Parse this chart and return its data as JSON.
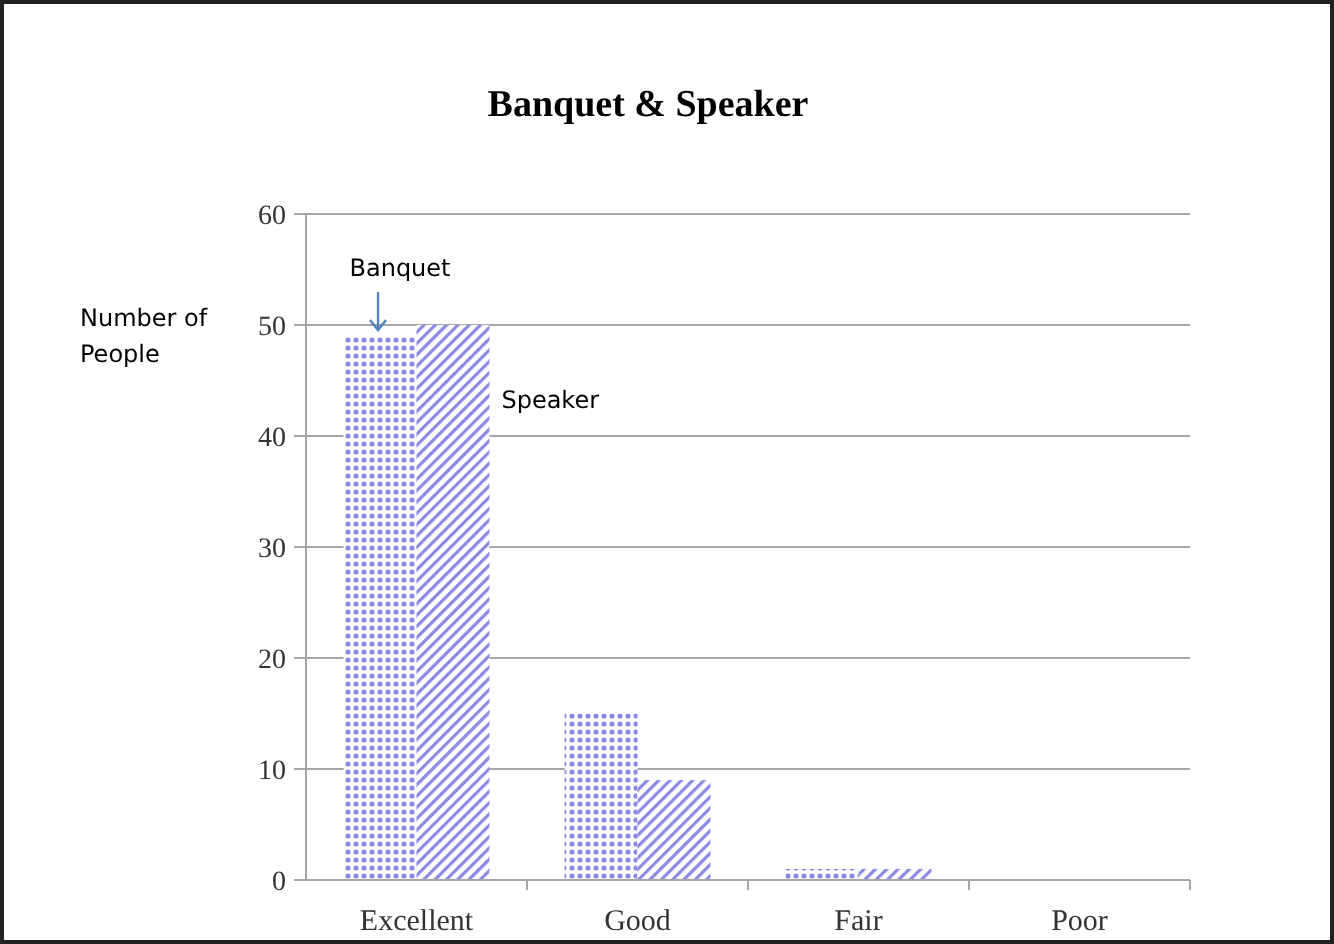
{
  "chart_data": {
    "type": "bar",
    "title": "Banquet & Speaker",
    "ylabel": "Number of People",
    "categories": [
      "Excellent",
      "Good",
      "Fair",
      "Poor"
    ],
    "series": [
      {
        "name": "Banquet",
        "color": "#8a8ae6",
        "values": [
          49,
          15,
          1,
          0
        ]
      },
      {
        "name": "Speaker",
        "color": "#8a8ae6",
        "values": [
          50,
          9,
          1,
          0
        ]
      }
    ],
    "ylim": [
      0,
      60
    ],
    "yticks": [
      0,
      10,
      20,
      30,
      40,
      50,
      60
    ],
    "grid": "y"
  }
}
